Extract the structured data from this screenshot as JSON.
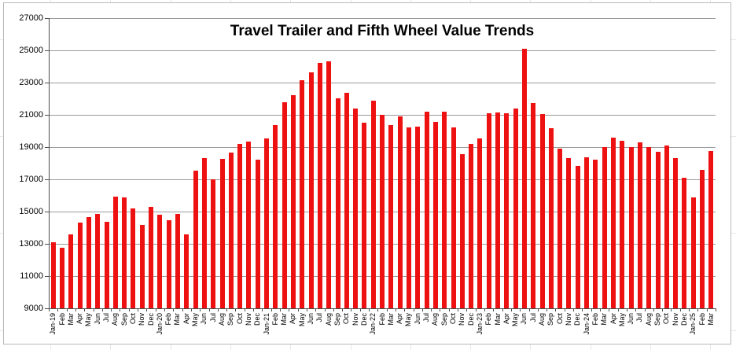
{
  "chart_data": {
    "type": "bar",
    "title": "Travel Trailer and Fifth Wheel Value Trends",
    "xlabel": "",
    "ylabel": "",
    "ylim": [
      9000,
      27000
    ],
    "ytick_step": 2000,
    "yticks": [
      27000,
      25000,
      23000,
      21000,
      19000,
      17000,
      15000,
      13000,
      11000,
      9000
    ],
    "grid": "horizontal",
    "legend_position": "none",
    "bar_color": "#ee1111",
    "gridline_color": "#9a9a9a",
    "axis_color": "#4d4d4d",
    "categories": [
      "Jan-19",
      "Feb",
      "Mar",
      "Apr",
      "May",
      "Jun",
      "Jul",
      "Aug",
      "Sep",
      "Oct",
      "Nov",
      "Dec",
      "Jan-20",
      "Feb",
      "Mar",
      "Apr",
      "May",
      "Jun",
      "Jul",
      "Aug",
      "Sep",
      "Oct",
      "Nov",
      "Dec",
      "Jan-21",
      "Feb",
      "Mar",
      "Apr",
      "May",
      "Jun",
      "Jul",
      "Aug",
      "Sep",
      "Oct",
      "Nov",
      "Dec",
      "Jan-22",
      "Feb",
      "Mar",
      "Apr",
      "May",
      "Jun",
      "Jul",
      "Aug",
      "Sep",
      "Oct",
      "Nov",
      "Dec",
      "Jan-23",
      "Feb",
      "Mar",
      "Apr",
      "May",
      "Jun",
      "Jul",
      "Aug",
      "Sep",
      "Oct",
      "Nov",
      "Dec",
      "Jan-24",
      "Feb",
      "Mar",
      "Apr",
      "May",
      "Jun",
      "Jul",
      "Aug",
      "Sep",
      "Oct",
      "Nov",
      "Dec",
      "Jan-25",
      "Feb",
      "Mar"
    ],
    "values": [
      13100,
      12750,
      13600,
      14300,
      14650,
      14850,
      14350,
      15950,
      15900,
      15200,
      14150,
      15300,
      14800,
      14450,
      14850,
      13600,
      17550,
      18300,
      17000,
      18250,
      18650,
      19200,
      19350,
      18200,
      19550,
      20350,
      21800,
      22200,
      23150,
      23650,
      24200,
      24300,
      22000,
      22350,
      21400,
      20500,
      21900,
      21000,
      20350,
      20900,
      20200,
      20250,
      21200,
      20550,
      21200,
      20200,
      18550,
      19200,
      19550,
      21100,
      21150,
      21100,
      21400,
      25100,
      21750,
      21050,
      20150,
      18900,
      18300,
      17850,
      18350,
      18200,
      19000,
      19600,
      19400,
      19000,
      19300,
      19000,
      18700,
      19100,
      18300,
      17100,
      15900,
      17600,
      18750
    ]
  }
}
